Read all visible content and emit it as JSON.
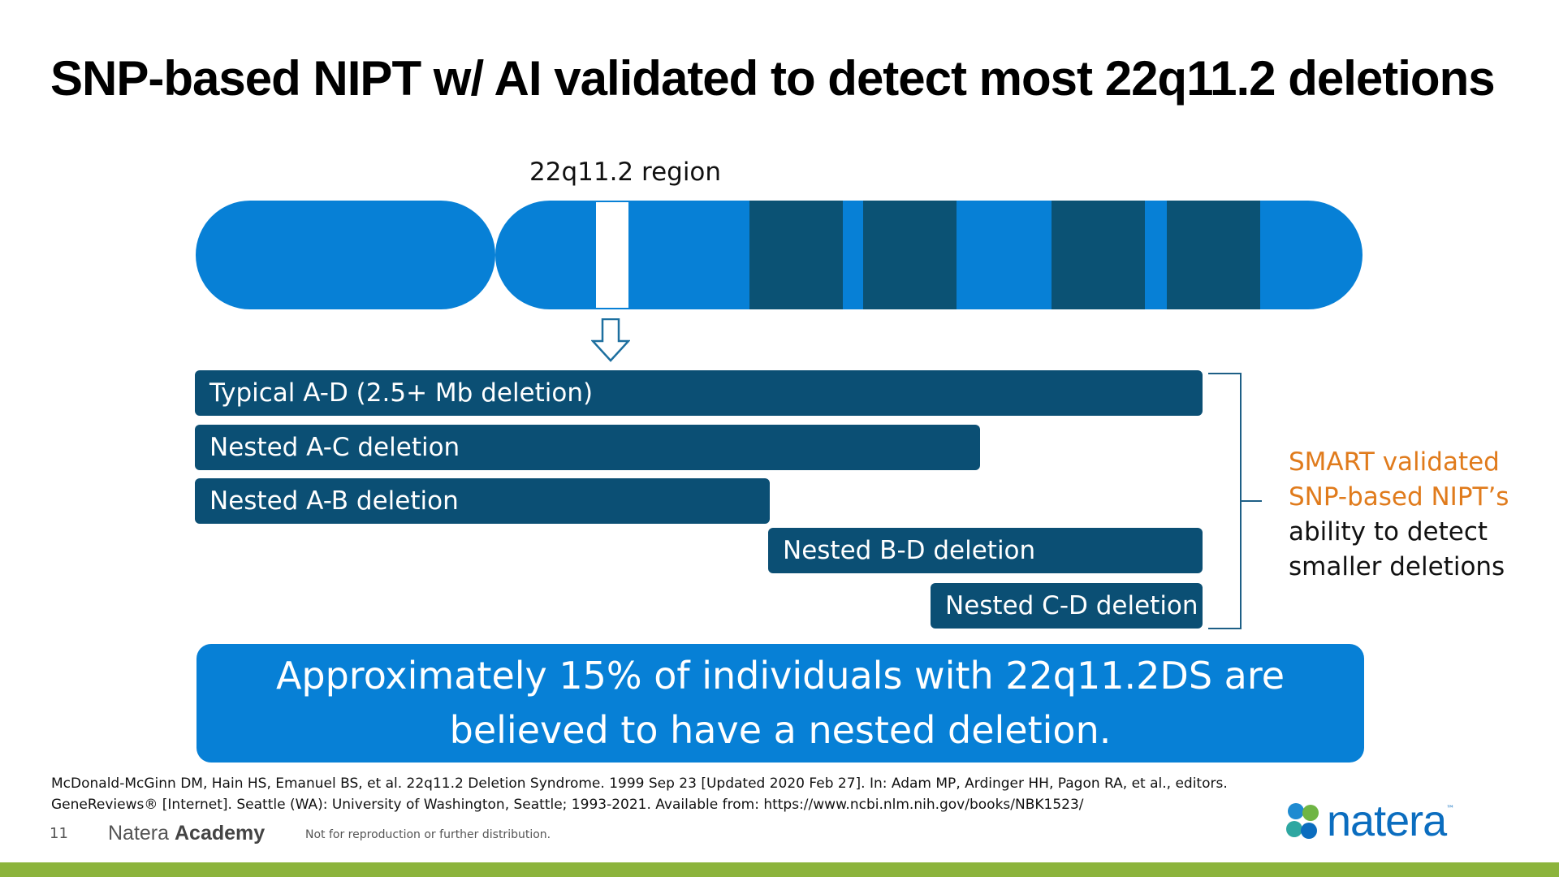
{
  "slide": {
    "title": "SNP-based NIPT w/ AI validated to detect most 22q11.2 deletions"
  },
  "chromosome": {
    "region_label": "22q11.2 region",
    "colors": {
      "arm": "#0780d6",
      "band": "#0b5274",
      "highlight": "#ffffff"
    }
  },
  "deletions": [
    {
      "label": "Typical A-D (2.5+ Mb deletion)"
    },
    {
      "label": "Nested A-C deletion"
    },
    {
      "label": "Nested A-B deletion"
    },
    {
      "label": "Nested B-D deletion"
    },
    {
      "label": "Nested C-D deletion"
    }
  ],
  "side_note": {
    "highlight_line1": "SMART validated",
    "highlight_line2": "SNP-based NIPT’s",
    "line3": "ability  to detect",
    "line4": "smaller deletions",
    "highlight_color": "#e07b1c"
  },
  "callout": {
    "line1": "Approximately 15% of individuals with 22q11.2DS are",
    "line2": "believed to have a nested deletion."
  },
  "reference": {
    "line1": "McDonald-McGinn DM, Hain HS, Emanuel BS, et al. 22q11.2 Deletion Syndrome. 1999 Sep 23 [Updated 2020 Feb 27]. In: Adam MP, Ardinger HH, Pagon RA, et al., editors.",
    "line2": "GeneReviews® [Internet]. Seattle (WA): University of Washington, Seattle; 1993-2021. Available from: https://www.ncbi.nlm.nih.gov/books/NBK1523/"
  },
  "footer": {
    "page_number": "11",
    "brand_light": "Natera",
    "brand_bold": "Academy",
    "disclaimer": "Not for reproduction or further distribution.",
    "logo_text": "natera",
    "logo_tm": "™",
    "strip_color": "#8cb43c"
  }
}
